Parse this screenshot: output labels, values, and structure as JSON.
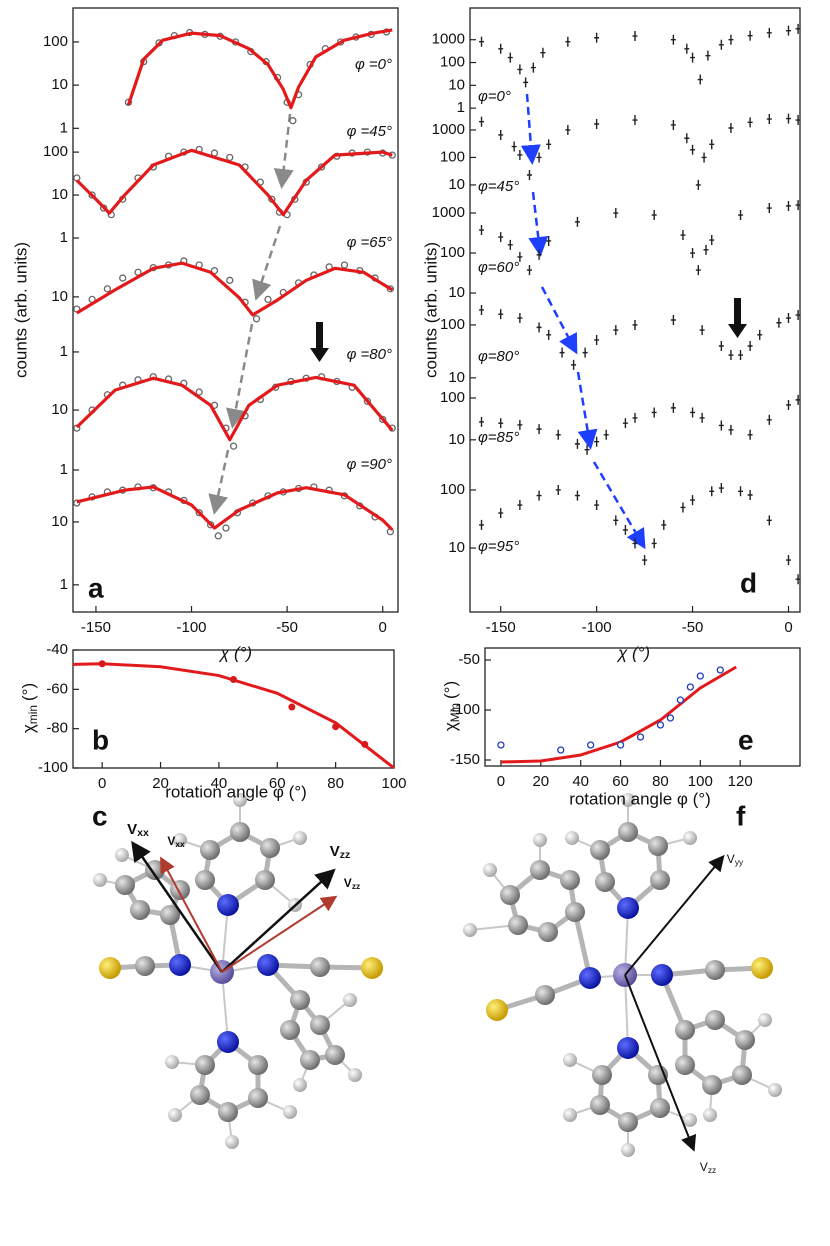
{
  "chart_data": [
    {
      "type": "stacked-log",
      "panel": "a",
      "xlabel": "χ (°)",
      "ylabel": "counts (arb. units)",
      "xlim": [
        -162,
        8
      ],
      "xticks": [
        -150,
        -100,
        -50,
        0
      ],
      "fit_color": "#e31a1c",
      "point_color": "#666666",
      "marker": "open",
      "subplots": [
        {
          "label": "φ =0°",
          "ylim": [
            0.7,
            550
          ],
          "yticks": [
            1,
            10,
            100
          ],
          "points": {
            "x": [
              -133,
              -125,
              -117,
              -109,
              -101,
              -93,
              -85,
              -77,
              -69,
              -61,
              -55,
              -50,
              -47,
              -44,
              -38,
              -30,
              -22,
              -14,
              -6,
              2
            ],
            "values": [
              4,
              35,
              95,
              140,
              165,
              150,
              135,
              100,
              60,
              35,
              15,
              4,
              1.5,
              6,
              30,
              70,
              100,
              130,
              150,
              170
            ]
          },
          "fit": {
            "x": [
              -133,
              -125,
              -115,
              -100,
              -85,
              -70,
              -60,
              -52,
              -48,
              -44,
              -35,
              -20,
              -5,
              5
            ],
            "values": [
              3.5,
              40,
              110,
              160,
              140,
              70,
              30,
              8,
              3,
              9,
              45,
              110,
              160,
              190
            ]
          }
        },
        {
          "label": "φ =45°",
          "ylim": [
            0.9,
            250
          ],
          "yticks": [
            1,
            10,
            100
          ],
          "points": {
            "x": [
              -160,
              -152,
              -146,
              -142,
              -136,
              -128,
              -120,
              -112,
              -104,
              -96,
              -88,
              -80,
              -72,
              -64,
              -58,
              -54,
              -50,
              -46,
              -40,
              -32,
              -24,
              -16,
              -8,
              0,
              5
            ],
            "values": [
              25,
              10,
              5,
              3.5,
              8,
              25,
              45,
              80,
              100,
              115,
              95,
              75,
              45,
              20,
              8,
              4,
              3.5,
              8,
              20,
              45,
              80,
              95,
              100,
              95,
              85
            ]
          },
          "fit": {
            "x": [
              -160,
              -150,
              -143,
              -135,
              -120,
              -100,
              -75,
              -60,
              -52,
              -40,
              -25,
              0,
              5
            ],
            "values": [
              22,
              8,
              3.8,
              10,
              50,
              110,
              50,
              10,
              3.5,
              22,
              85,
              100,
              85
            ]
          }
        },
        {
          "label": "φ =65°",
          "ylim": [
            0.88,
            108
          ],
          "yticks": [
            1,
            10
          ],
          "points": {
            "x": [
              -160,
              -152,
              -144,
              -136,
              -128,
              -120,
              -112,
              -104,
              -96,
              -88,
              -80,
              -72,
              -66,
              -60,
              -52,
              -44,
              -36,
              -28,
              -20,
              -12,
              -4,
              4
            ],
            "values": [
              6,
              9,
              14,
              22,
              28,
              34,
              38,
              45,
              38,
              30,
              20,
              8,
              4,
              9,
              12,
              18,
              25,
              35,
              38,
              30,
              22,
              14
            ]
          },
          "fit": {
            "x": [
              -160,
              -140,
              -120,
              -105,
              -90,
              -75,
              -68,
              -55,
              -40,
              -25,
              -10,
              5
            ],
            "values": [
              5.1,
              13.4,
              33,
              41,
              28,
              9.6,
              4.7,
              8.8,
              20,
              33,
              28,
              13.4
            ]
          }
        },
        {
          "label": "φ =80°",
          "ylim": [
            1,
            83
          ],
          "yticks": [
            1,
            10
          ],
          "points": {
            "x": [
              -160,
              -152,
              -144,
              -136,
              -128,
              -120,
              -112,
              -104,
              -96,
              -88,
              -82,
              -78,
              -72,
              -64,
              -56,
              -48,
              -40,
              -32,
              -24,
              -16,
              -8,
              0,
              5
            ],
            "values": [
              5,
              10,
              18,
              26,
              32,
              36,
              33,
              28,
              20,
              12,
              5,
              2.5,
              8,
              15,
              24,
              30,
              34,
              36,
              30,
              24,
              14,
              7,
              5
            ]
          },
          "fit": {
            "x": [
              -160,
              -140,
              -120,
              -105,
              -90,
              -80,
              -70,
              -55,
              -35,
              -15,
              5
            ],
            "values": [
              5.2,
              21.5,
              34,
              26,
              12,
              3.2,
              12,
              26,
              35,
              26,
              4.6
            ]
          }
        },
        {
          "label": "φ =90°",
          "ylim": [
            0.37,
            67
          ],
          "yticks": [
            1,
            10
          ],
          "points": {
            "x": [
              -160,
              -152,
              -144,
              -136,
              -128,
              -120,
              -112,
              -104,
              -96,
              -90,
              -86,
              -82,
              -76,
              -68,
              -60,
              -52,
              -44,
              -36,
              -28,
              -20,
              -12,
              -4,
              4
            ],
            "values": [
              20,
              25,
              30,
              32,
              36,
              35,
              30,
              22,
              14,
              9,
              6,
              8,
              14,
              20,
              26,
              30,
              34,
              36,
              32,
              26,
              18,
              12,
              7
            ]
          },
          "fit": {
            "x": [
              -160,
              -135,
              -120,
              -100,
              -88,
              -75,
              -55,
              -40,
              -20,
              0,
              5
            ],
            "values": [
              20.8,
              32,
              36,
              18.6,
              8,
              15.5,
              29,
              35,
              27,
              10.7,
              7.5
            ]
          }
        }
      ]
    },
    {
      "type": "stacked-log",
      "panel": "d",
      "xlabel": "χ (°)",
      "ylabel": "counts (arb. units)",
      "xlim": [
        -166,
        6
      ],
      "xticks": [
        -150,
        -100,
        -50,
        0
      ],
      "point_color": "#222222",
      "marker": "cross",
      "subplots": [
        {
          "label": "φ=0°",
          "ylim": [
            0.37,
            24600
          ],
          "yticks": [
            1,
            10,
            100,
            1000
          ],
          "points": {
            "x": [
              -160,
              -150,
              -145,
              -140,
              -137,
              -133,
              -128,
              -115,
              -100,
              -80,
              -60,
              -53,
              -50,
              -46,
              -42,
              -35,
              -30,
              -20,
              -10,
              0,
              5
            ],
            "values": [
              820,
              400,
              165,
              50,
              13.5,
              60,
              270,
              820,
              1220,
              1450,
              1000,
              400,
              165,
              18,
              200,
              600,
              1000,
              1500,
              2000,
              2500,
              3000
            ]
          }
        },
        {
          "label": "φ=45°",
          "ylim": [
            4.3,
            2730
          ],
          "yticks": [
            10,
            100,
            1000
          ],
          "points": {
            "x": [
              -160,
              -150,
              -143,
              -140,
              -135,
              -130,
              -125,
              -115,
              -100,
              -80,
              -60,
              -53,
              -50,
              -47,
              -44,
              -40,
              -30,
              -20,
              -10,
              0,
              5
            ],
            "values": [
              2000,
              660,
              250,
              123,
              23,
              100,
              300,
              1000,
              1650,
              2300,
              1520,
              500,
              190,
              10,
              100,
              300,
              1180,
              1900,
              2500,
              2600,
              2300
            ]
          }
        },
        {
          "label": "φ=60°",
          "ylim": [
            6.7,
            2820
          ],
          "yticks": [
            10,
            100,
            1000
          ],
          "points": {
            "x": [
              -160,
              -150,
              -145,
              -140,
              -135,
              -130,
              -125,
              -110,
              -90,
              -70,
              -55,
              -50,
              -47,
              -43,
              -40,
              -25,
              -10,
              0,
              5
            ],
            "values": [
              376,
              250,
              160,
              80,
              37.5,
              90,
              200,
              600,
              1000,
              890,
              282,
              100,
              37.5,
              120,
              211,
              890,
              1330,
              1500,
              1580
            ]
          }
        },
        {
          "label": "φ=80°",
          "ylim": [
            5.9,
            296
          ],
          "yticks": [
            10,
            100
          ],
          "points": {
            "x": [
              -160,
              -150,
              -140,
              -130,
              -125,
              -118,
              -112,
              -106,
              -100,
              -90,
              -80,
              -60,
              -45,
              -35,
              -30,
              -25,
              -20,
              -15,
              -5,
              0,
              5
            ],
            "values": [
              192,
              160,
              135,
              90,
              65,
              30,
              17.6,
              30,
              52,
              80,
              100,
              124,
              80,
              40,
              27,
              27,
              40,
              65,
              110,
              135,
              154
            ]
          }
        },
        {
          "label": "φ=85°",
          "ylim": [
            1.9,
            155
          ],
          "yticks": [
            10,
            100
          ],
          "points": {
            "x": [
              -160,
              -150,
              -140,
              -130,
              -120,
              -110,
              -105,
              -100,
              -95,
              -85,
              -80,
              -70,
              -60,
              -50,
              -45,
              -35,
              -30,
              -20,
              -10,
              0,
              5
            ],
            "values": [
              26.8,
              25,
              22.7,
              18,
              13.2,
              8,
              5.8,
              9,
              13.2,
              25,
              33.4,
              45,
              58,
              45,
              33.4,
              22,
              17.3,
              13.2,
              30,
              68,
              90
            ]
          }
        },
        {
          "label": "φ=95°",
          "ylim": [
            0.79,
            221
          ],
          "yticks": [
            10,
            100
          ],
          "points": {
            "x": [
              -160,
              -150,
              -140,
              -130,
              -120,
              -110,
              -100,
              -90,
              -85,
              -80,
              -75,
              -70,
              -65,
              -55,
              -50,
              -40,
              -35,
              -25,
              -20,
              -10,
              0,
              5
            ],
            "values": [
              25,
              40,
              55,
              80,
              100,
              80,
              55,
              30,
              20.5,
              12,
              6.2,
              12,
              25,
              50,
              67,
              95,
              108,
              95,
              82,
              30,
              6.2,
              2.9
            ]
          }
        }
      ]
    },
    {
      "type": "scatter-fit",
      "panel": "b",
      "xlabel": "rotation angle φ (°)",
      "ylabel": {
        "main": "χ",
        "sub": "min",
        "rest": "(°)"
      },
      "xlim": [
        -10,
        100
      ],
      "xticks": [
        0,
        20,
        40,
        60,
        80,
        100
      ],
      "ylim": [
        -100,
        -40
      ],
      "yticks": [
        -40,
        -60,
        -80,
        -100
      ],
      "point_color": "#d7191c",
      "fit_color": "#e31a1c",
      "marker": "filled",
      "points": {
        "x": [
          0,
          45,
          65,
          80,
          90
        ],
        "values": [
          -47,
          -55,
          -69,
          -79,
          -88
        ]
      },
      "fit": {
        "x": [
          -10,
          0,
          20,
          40,
          60,
          80,
          100
        ],
        "values": [
          -47.3,
          -47,
          -48.5,
          -53,
          -62,
          -77,
          -100
        ]
      }
    },
    {
      "type": "scatter-fit",
      "panel": "e",
      "xlabel": "rotation angle φ (°)",
      "ylabel": {
        "main": "χ",
        "sub": "Min",
        "rest": "(°)"
      },
      "xlim": [
        -8,
        150
      ],
      "xticks": [
        0,
        20,
        40,
        60,
        80,
        100,
        120
      ],
      "ylim": [
        -156,
        -38
      ],
      "yticks": [
        -50,
        -100,
        -150
      ],
      "point_color": "#1f3fbf",
      "fit_color": "#e31a1c",
      "marker": "open",
      "points": {
        "x": [
          0,
          30,
          45,
          60,
          70,
          80,
          85,
          90,
          95,
          100,
          110
        ],
        "values": [
          -135,
          -140,
          -135,
          -135,
          -127,
          -115,
          -108,
          -90,
          -77,
          -66,
          -60
        ]
      },
      "fit": {
        "x": [
          0,
          20,
          40,
          60,
          80,
          100,
          118
        ],
        "values": [
          -152,
          -151,
          -145,
          -132,
          -110,
          -78,
          -57
        ]
      }
    }
  ],
  "molecules": [
    {
      "panel": "c",
      "vectors": [
        {
          "main": "V",
          "sub": "xx",
          "color": "#111111"
        },
        {
          "main": "V",
          "sub": "xx",
          "color": "#c0392b"
        },
        {
          "main": "V",
          "sub": "zz",
          "color": "#111111"
        },
        {
          "main": "V",
          "sub": "zz",
          "color": "#c0392b"
        }
      ]
    },
    {
      "panel": "f",
      "vectors": [
        {
          "main": "V",
          "sub": "yy",
          "color": "#555555"
        },
        {
          "main": "V",
          "sub": "zz",
          "color": "#555555"
        }
      ]
    }
  ]
}
